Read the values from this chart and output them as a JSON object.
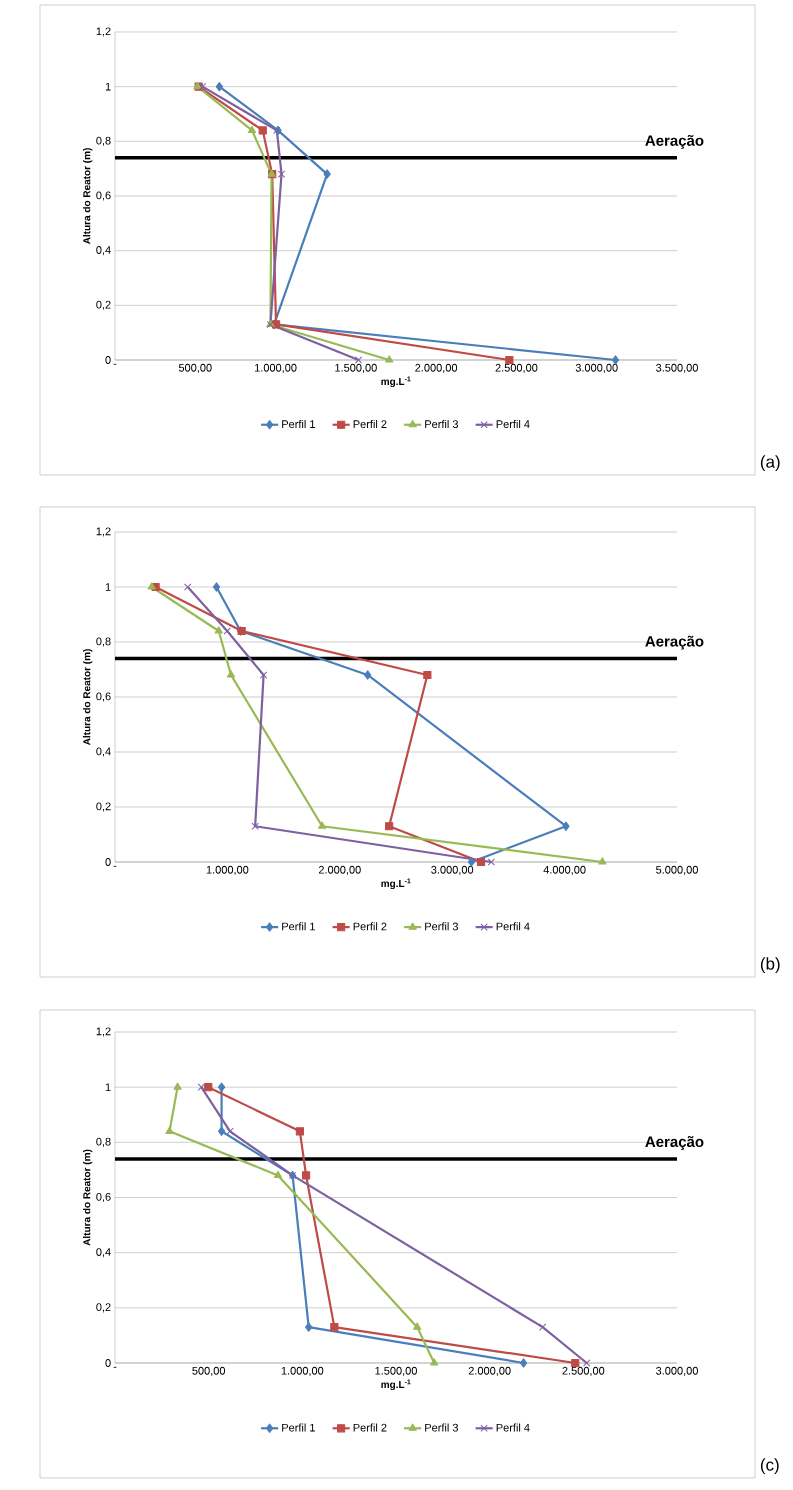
{
  "chart_data": [
    {
      "type": "line",
      "xlabel": "mg.L$^{-1}$",
      "ylabel": "Altura do Reator (m)",
      "annotations": [
        "(a)"
      ],
      "xlim": [
        0,
        3500
      ],
      "ylim": [
        0,
        1.2
      ],
      "xticks": [
        {
          "value": 0,
          "label": "-"
        },
        {
          "value": 500,
          "label": "500,00"
        },
        {
          "value": 1000,
          "label": "1.000,00"
        },
        {
          "value": 1500,
          "label": "1.500,00"
        },
        {
          "value": 2000,
          "label": "2.000,00"
        },
        {
          "value": 2500,
          "label": "2.500,00"
        },
        {
          "value": 3000,
          "label": "3.000,00"
        },
        {
          "value": 3500,
          "label": "3.500,00"
        }
      ],
      "yticks": [
        {
          "value": 0,
          "label": "0"
        },
        {
          "value": 0.2,
          "label": "0,2"
        },
        {
          "value": 0.4,
          "label": "0,4"
        },
        {
          "value": 0.6,
          "label": "0,6"
        },
        {
          "value": 0.8,
          "label": "0,8"
        },
        {
          "value": 1,
          "label": "1"
        },
        {
          "value": 1.2,
          "label": "1,2"
        }
      ],
      "grid": "y",
      "legend": "bottom",
      "ref_lines": [
        {
          "axis": "y",
          "value": 0.74,
          "label": "Aeração",
          "color": "#000000"
        }
      ],
      "series": [
        {
          "name": "Perfil 1",
          "color": "#4a7ebb",
          "marker": "diamond",
          "x": [
            650,
            1015,
            1321,
            991,
            3117
          ],
          "values": [
            1,
            0.84,
            0.68,
            0.13,
            0
          ]
        },
        {
          "name": "Perfil 2",
          "color": "#be4b48",
          "marker": "square",
          "x": [
            521,
            920,
            979,
            1003,
            2456
          ],
          "values": [
            1,
            0.84,
            0.68,
            0.13,
            0
          ]
        },
        {
          "name": "Perfil 3",
          "color": "#98b954",
          "marker": "triangle",
          "x": [
            514,
            853,
            975,
            968,
            1708
          ],
          "values": [
            1,
            0.84,
            0.68,
            0.13,
            0
          ]
        },
        {
          "name": "Perfil 4",
          "color": "#7d60a0",
          "marker": "cross",
          "x": [
            545,
            1008,
            1037,
            968,
            1517
          ],
          "values": [
            1,
            0.84,
            0.68,
            0.13,
            0
          ]
        }
      ]
    },
    {
      "type": "line",
      "xlabel": "mg.L$^{-1}$",
      "ylabel": "Altura do Reator (m)",
      "annotations": [
        "(b)"
      ],
      "xlim": [
        0,
        5000
      ],
      "ylim": [
        0,
        1.2
      ],
      "xticks": [
        {
          "value": 0,
          "label": "-"
        },
        {
          "value": 1000,
          "label": "1.000,00"
        },
        {
          "value": 2000,
          "label": "2.000,00"
        },
        {
          "value": 3000,
          "label": "3.000,00"
        },
        {
          "value": 4000,
          "label": "4.000,00"
        },
        {
          "value": 5000,
          "label": "5.000,00"
        }
      ],
      "yticks": [
        {
          "value": 0,
          "label": "0"
        },
        {
          "value": 0.2,
          "label": "0,2"
        },
        {
          "value": 0.4,
          "label": "0,4"
        },
        {
          "value": 0.6,
          "label": "0,6"
        },
        {
          "value": 0.8,
          "label": "0,8"
        },
        {
          "value": 1,
          "label": "1"
        },
        {
          "value": 1.2,
          "label": "1,2"
        }
      ],
      "grid": "y",
      "legend": "bottom",
      "ref_lines": [
        {
          "axis": "y",
          "value": 0.74,
          "label": "Aeração",
          "color": "#000000"
        }
      ],
      "series": [
        {
          "name": "Perfil 1",
          "color": "#4a7ebb",
          "marker": "diamond",
          "x": [
            903,
            1117,
            2248,
            4012,
            3171
          ],
          "values": [
            1,
            0.84,
            0.68,
            0.13,
            0
          ]
        },
        {
          "name": "Perfil 2",
          "color": "#be4b48",
          "marker": "square",
          "x": [
            361,
            1127,
            2779,
            2439,
            3256
          ],
          "values": [
            1,
            0.84,
            0.68,
            0.13,
            0
          ]
        },
        {
          "name": "Perfil 3",
          "color": "#98b954",
          "marker": "triangle",
          "x": [
            327,
            923,
            1032,
            1843,
            4336
          ],
          "values": [
            1,
            0.84,
            0.68,
            0.13,
            0
          ]
        },
        {
          "name": "Perfil 4",
          "color": "#7d60a0",
          "marker": "cross",
          "x": [
            647,
            998,
            1322,
            1247,
            3348
          ],
          "values": [
            1,
            0.84,
            0.68,
            0.13,
            0
          ]
        }
      ]
    },
    {
      "type": "line",
      "xlabel": "mg.L$^{-1}$",
      "ylabel": "Altura do Reator (m)",
      "annotations": [
        "(c)"
      ],
      "xlim": [
        0,
        3000
      ],
      "ylim": [
        0,
        1.2
      ],
      "xticks": [
        {
          "value": 0,
          "label": "-"
        },
        {
          "value": 500,
          "label": "500,00"
        },
        {
          "value": 1000,
          "label": "1.000,00"
        },
        {
          "value": 1500,
          "label": "1.500,00"
        },
        {
          "value": 2000,
          "label": "2.000,00"
        },
        {
          "value": 2500,
          "label": "2.500,00"
        },
        {
          "value": 3000,
          "label": "3.000,00"
        }
      ],
      "yticks": [
        {
          "value": 0,
          "label": "0"
        },
        {
          "value": 0.2,
          "label": "0,2"
        },
        {
          "value": 0.4,
          "label": "0,4"
        },
        {
          "value": 0.6,
          "label": "0,6"
        },
        {
          "value": 0.8,
          "label": "0,8"
        },
        {
          "value": 1,
          "label": "1"
        },
        {
          "value": 1.2,
          "label": "1,2"
        }
      ],
      "grid": "y",
      "legend": "bottom",
      "ref_lines": [
        {
          "axis": "y",
          "value": 0.74,
          "label": "Aeração",
          "color": "#000000"
        }
      ],
      "series": [
        {
          "name": "Perfil 1",
          "color": "#4a7ebb",
          "marker": "diamond",
          "x": [
            569,
            569,
            948,
            1034,
            2181
          ],
          "values": [
            1,
            0.84,
            0.68,
            0.13,
            0
          ]
        },
        {
          "name": "Perfil 2",
          "color": "#be4b48",
          "marker": "square",
          "x": [
            498,
            987,
            1020,
            1171,
            2457
          ],
          "values": [
            1,
            0.84,
            0.68,
            0.13,
            0
          ]
        },
        {
          "name": "Perfil 3",
          "color": "#98b954",
          "marker": "triangle",
          "x": [
            334,
            291,
            870,
            1613,
            1704
          ],
          "values": [
            1,
            0.84,
            0.68,
            0.13,
            0
          ]
        },
        {
          "name": "Perfil 4",
          "color": "#7d60a0",
          "marker": "cross",
          "x": [
            461,
            614,
            948,
            2283,
            2518
          ],
          "values": [
            1,
            0.84,
            0.68,
            0.13,
            0
          ]
        }
      ]
    }
  ]
}
